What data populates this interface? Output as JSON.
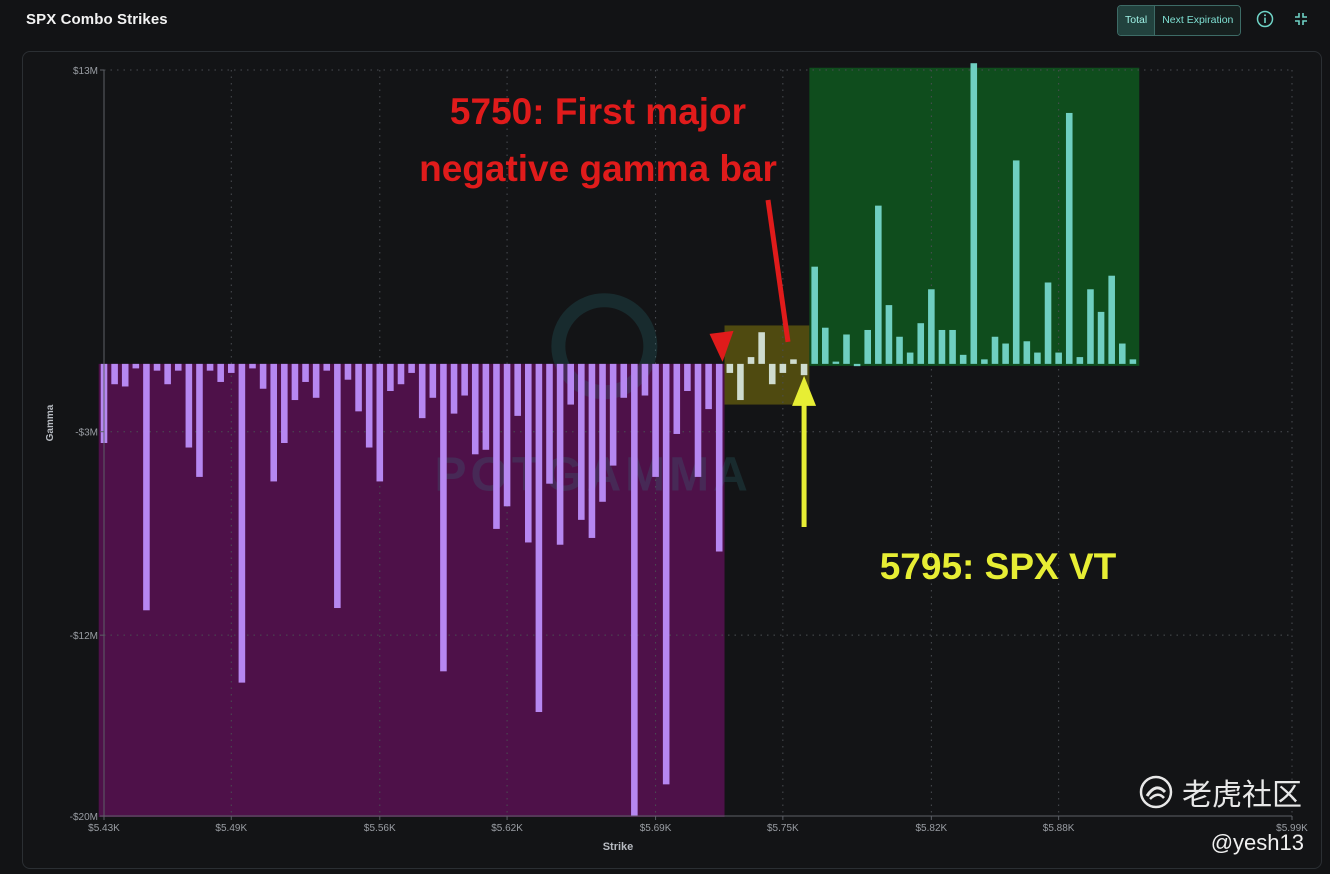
{
  "header": {
    "title": "SPX Combo Strikes",
    "toggle_total": "Total",
    "toggle_next": "Next Expiration",
    "info_icon": "info-icon",
    "collapse_icon": "collapse-icon"
  },
  "colors": {
    "negative_bar": "#b687f1",
    "positive_bar": "#6fcfc1",
    "negative_zone": "#4e1149",
    "positive_zone": "#0f4d1d",
    "transition_zone": "#4f4a10",
    "red_annotation": "#e01b1b",
    "yellow_annotation": "#e7ee34"
  },
  "chart_data": {
    "type": "bar",
    "title": "",
    "xlabel": "Strike",
    "ylabel": "Gamma",
    "ylim": [
      -20,
      13
    ],
    "y_unit": "$M",
    "y_ticks": [
      13,
      -3,
      -12,
      -20
    ],
    "y_tick_labels": [
      "$13M",
      "-$3M",
      "-$12M",
      "-$20M"
    ],
    "xlim": [
      5430,
      5990
    ],
    "x_ticks": [
      5430,
      5490,
      5560,
      5620,
      5690,
      5750,
      5820,
      5880,
      5990
    ],
    "x_tick_labels": [
      "$5.43K",
      "$5.49K",
      "$5.56K",
      "$5.62K",
      "$5.69K",
      "$5.75K",
      "$5.82K",
      "$5.88K",
      "$5.99K"
    ],
    "grid": true,
    "negative_bars": [
      {
        "x": 5430,
        "y": -3.5
      },
      {
        "x": 5435,
        "y": -0.9
      },
      {
        "x": 5440,
        "y": -1.0
      },
      {
        "x": 5445,
        "y": -0.2
      },
      {
        "x": 5450,
        "y": -10.9
      },
      {
        "x": 5455,
        "y": -0.3
      },
      {
        "x": 5460,
        "y": -0.9
      },
      {
        "x": 5465,
        "y": -0.3
      },
      {
        "x": 5470,
        "y": -3.7
      },
      {
        "x": 5475,
        "y": -5.0
      },
      {
        "x": 5480,
        "y": -0.3
      },
      {
        "x": 5485,
        "y": -0.8
      },
      {
        "x": 5490,
        "y": -0.4
      },
      {
        "x": 5495,
        "y": -14.1
      },
      {
        "x": 5500,
        "y": -0.2
      },
      {
        "x": 5505,
        "y": -1.1
      },
      {
        "x": 5510,
        "y": -5.2
      },
      {
        "x": 5515,
        "y": -3.5
      },
      {
        "x": 5520,
        "y": -1.6
      },
      {
        "x": 5525,
        "y": -0.8
      },
      {
        "x": 5530,
        "y": -1.5
      },
      {
        "x": 5535,
        "y": -0.3
      },
      {
        "x": 5540,
        "y": -10.8
      },
      {
        "x": 5545,
        "y": -0.7
      },
      {
        "x": 5550,
        "y": -2.1
      },
      {
        "x": 5555,
        "y": -3.7
      },
      {
        "x": 5560,
        "y": -5.2
      },
      {
        "x": 5565,
        "y": -1.2
      },
      {
        "x": 5570,
        "y": -0.9
      },
      {
        "x": 5575,
        "y": -0.4
      },
      {
        "x": 5580,
        "y": -2.4
      },
      {
        "x": 5585,
        "y": -1.5
      },
      {
        "x": 5590,
        "y": -13.6
      },
      {
        "x": 5595,
        "y": -2.2
      },
      {
        "x": 5600,
        "y": -1.4
      },
      {
        "x": 5605,
        "y": -4.0
      },
      {
        "x": 5610,
        "y": -3.8
      },
      {
        "x": 5615,
        "y": -7.3
      },
      {
        "x": 5620,
        "y": -6.3
      },
      {
        "x": 5625,
        "y": -2.3
      },
      {
        "x": 5630,
        "y": -7.9
      },
      {
        "x": 5635,
        "y": -15.4
      },
      {
        "x": 5640,
        "y": -5.3
      },
      {
        "x": 5645,
        "y": -8.0
      },
      {
        "x": 5650,
        "y": -1.8
      },
      {
        "x": 5655,
        "y": -6.9
      },
      {
        "x": 5660,
        "y": -7.7
      },
      {
        "x": 5665,
        "y": -6.1
      },
      {
        "x": 5670,
        "y": -4.5
      },
      {
        "x": 5675,
        "y": -1.5
      },
      {
        "x": 5680,
        "y": -20.0
      },
      {
        "x": 5685,
        "y": -1.4
      },
      {
        "x": 5690,
        "y": -5.0
      },
      {
        "x": 5695,
        "y": -18.6
      },
      {
        "x": 5700,
        "y": -3.1
      },
      {
        "x": 5705,
        "y": -1.2
      },
      {
        "x": 5710,
        "y": -5.0
      },
      {
        "x": 5715,
        "y": -2.0
      },
      {
        "x": 5720,
        "y": -8.3
      }
    ],
    "transition_bars": [
      {
        "x": 5725,
        "y": -0.4
      },
      {
        "x": 5730,
        "y": -1.6
      },
      {
        "x": 5735,
        "y": 0.3
      },
      {
        "x": 5740,
        "y": 1.4
      },
      {
        "x": 5745,
        "y": -0.9
      },
      {
        "x": 5750,
        "y": -0.4
      },
      {
        "x": 5755,
        "y": 0.2
      },
      {
        "x": 5760,
        "y": -0.5
      }
    ],
    "positive_bars": [
      {
        "x": 5765,
        "y": 4.3
      },
      {
        "x": 5770,
        "y": 1.6
      },
      {
        "x": 5775,
        "y": 0.1
      },
      {
        "x": 5780,
        "y": 1.3
      },
      {
        "x": 5785,
        "y": -0.1
      },
      {
        "x": 5790,
        "y": 1.5
      },
      {
        "x": 5795,
        "y": 7.0
      },
      {
        "x": 5800,
        "y": 2.6
      },
      {
        "x": 5805,
        "y": 1.2
      },
      {
        "x": 5810,
        "y": 0.5
      },
      {
        "x": 5815,
        "y": 1.8
      },
      {
        "x": 5820,
        "y": 3.3
      },
      {
        "x": 5825,
        "y": 1.5
      },
      {
        "x": 5830,
        "y": 1.5
      },
      {
        "x": 5835,
        "y": 0.4
      },
      {
        "x": 5840,
        "y": 13.3
      },
      {
        "x": 5845,
        "y": 0.2
      },
      {
        "x": 5850,
        "y": 1.2
      },
      {
        "x": 5855,
        "y": 0.9
      },
      {
        "x": 5860,
        "y": 9.0
      },
      {
        "x": 5865,
        "y": 1.0
      },
      {
        "x": 5870,
        "y": 0.5
      },
      {
        "x": 5875,
        "y": 3.6
      },
      {
        "x": 5880,
        "y": 0.5
      },
      {
        "x": 5885,
        "y": 11.1
      },
      {
        "x": 5890,
        "y": 0.3
      },
      {
        "x": 5895,
        "y": 3.3
      },
      {
        "x": 5900,
        "y": 2.3
      },
      {
        "x": 5905,
        "y": 3.9
      },
      {
        "x": 5910,
        "y": 0.9
      },
      {
        "x": 5915,
        "y": 0.2
      }
    ],
    "annotations": [
      {
        "text_line1": "5750: First major",
        "text_line2": "negative gamma bar",
        "color": "red"
      },
      {
        "text": "5795: SPX VT",
        "color": "yellow"
      }
    ],
    "background_watermark": "POTGAMMA"
  },
  "watermark": {
    "logo_text": "老虎社区",
    "user": "@yesh13"
  }
}
